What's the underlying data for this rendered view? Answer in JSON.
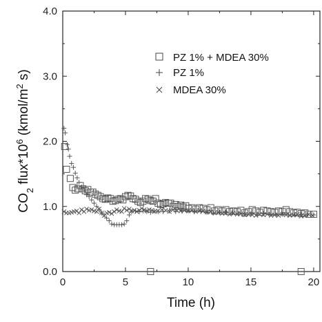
{
  "chart_data": {
    "type": "scatter",
    "xlabel": "Time (h)",
    "ylabel": {
      "prefix": "CO",
      "sub": "2",
      "mid": " flux*10",
      "sup1": "6",
      "unit_open": " (kmol/m",
      "sup2": "2",
      "unit_close": " s)"
    },
    "xlim": [
      0,
      20.5
    ],
    "ylim": [
      0,
      4.0
    ],
    "xticks": [
      0,
      5,
      10,
      15,
      20
    ],
    "xtick_labels": [
      "0",
      "5",
      "10",
      "15",
      "20"
    ],
    "yticks": [
      0,
      1,
      2,
      3,
      4
    ],
    "ytick_labels": [
      "0.0",
      "1.0",
      "2.0",
      "3.0",
      "4.0"
    ],
    "grid": false,
    "legend_position": "top-right",
    "colors": {
      "axis": "#222222",
      "marker": "#555555"
    },
    "series": [
      {
        "name": "PZ 1% + MDEA 30%",
        "marker": "square",
        "points": [
          [
            0.15,
            1.92
          ],
          [
            0.3,
            1.57
          ],
          [
            0.6,
            1.43
          ],
          [
            0.8,
            1.29
          ],
          [
            1.0,
            1.25
          ],
          [
            1.2,
            1.27
          ],
          [
            1.4,
            1.32
          ],
          [
            1.6,
            1.27
          ],
          [
            1.8,
            1.24
          ],
          [
            2.0,
            1.26
          ],
          [
            2.2,
            1.22
          ],
          [
            2.4,
            1.22
          ],
          [
            2.6,
            1.19
          ],
          [
            2.8,
            1.17
          ],
          [
            3.0,
            1.15
          ],
          [
            3.2,
            1.12
          ],
          [
            3.4,
            1.11
          ],
          [
            3.6,
            1.13
          ],
          [
            3.8,
            1.12
          ],
          [
            4.0,
            1.08
          ],
          [
            4.2,
            1.09
          ],
          [
            4.4,
            1.11
          ],
          [
            4.6,
            1.12
          ],
          [
            4.8,
            1.1
          ],
          [
            5.0,
            1.15
          ],
          [
            5.2,
            1.17
          ],
          [
            5.4,
            1.16
          ],
          [
            5.6,
            1.12
          ],
          [
            5.8,
            1.11
          ],
          [
            6.0,
            1.08
          ],
          [
            6.2,
            1.06
          ],
          [
            6.4,
            1.08
          ],
          [
            6.6,
            1.12
          ],
          [
            6.8,
            1.11
          ],
          [
            7.0,
            1.09
          ],
          [
            7.2,
            1.08
          ],
          [
            7.4,
            1.12
          ],
          [
            7.6,
            1.05
          ],
          [
            7.8,
            1.03
          ],
          [
            8.0,
            1.04
          ],
          [
            8.2,
            1.06
          ],
          [
            8.4,
            1.05
          ],
          [
            8.6,
            1.05
          ],
          [
            8.8,
            1.0
          ],
          [
            9.0,
            1.03
          ],
          [
            9.2,
            1.0
          ],
          [
            9.4,
            1.02
          ],
          [
            9.6,
            0.99
          ],
          [
            9.8,
            1.01
          ],
          [
            10.0,
            0.97
          ],
          [
            10.3,
            0.98
          ],
          [
            10.6,
            0.96
          ],
          [
            10.9,
            0.98
          ],
          [
            11.2,
            0.97
          ],
          [
            11.5,
            0.95
          ],
          [
            11.8,
            0.98
          ],
          [
            12.1,
            0.93
          ],
          [
            12.4,
            0.95
          ],
          [
            12.7,
            0.93
          ],
          [
            13.0,
            0.95
          ],
          [
            13.3,
            0.92
          ],
          [
            13.6,
            0.93
          ],
          [
            13.9,
            0.92
          ],
          [
            14.2,
            0.94
          ],
          [
            14.5,
            0.9
          ],
          [
            14.8,
            0.92
          ],
          [
            15.1,
            0.95
          ],
          [
            15.4,
            0.93
          ],
          [
            15.7,
            0.91
          ],
          [
            16.0,
            0.94
          ],
          [
            16.3,
            0.93
          ],
          [
            16.6,
            0.92
          ],
          [
            16.9,
            0.91
          ],
          [
            17.2,
            0.93
          ],
          [
            17.5,
            0.92
          ],
          [
            17.8,
            0.95
          ],
          [
            18.1,
            0.92
          ],
          [
            18.4,
            0.9
          ],
          [
            18.7,
            0.91
          ],
          [
            19.0,
            0.89
          ],
          [
            19.3,
            0.9
          ],
          [
            19.6,
            0.88
          ],
          [
            20.0,
            0.88
          ],
          [
            7.0,
            0.0
          ],
          [
            19.0,
            0.0
          ]
        ]
      },
      {
        "name": "PZ 1%",
        "marker": "plus",
        "points": [
          [
            0.1,
            2.2
          ],
          [
            0.2,
            2.13
          ],
          [
            0.35,
            1.95
          ],
          [
            0.45,
            1.88
          ],
          [
            0.55,
            1.77
          ],
          [
            0.7,
            1.66
          ],
          [
            0.85,
            1.6
          ],
          [
            1.0,
            1.51
          ],
          [
            1.15,
            1.44
          ],
          [
            1.3,
            1.37
          ],
          [
            1.5,
            1.3
          ],
          [
            1.7,
            1.25
          ],
          [
            1.9,
            1.18
          ],
          [
            2.1,
            1.15
          ],
          [
            2.3,
            1.1
          ],
          [
            2.5,
            1.05
          ],
          [
            2.7,
            1.0
          ],
          [
            2.9,
            0.95
          ],
          [
            3.1,
            0.9
          ],
          [
            3.3,
            0.87
          ],
          [
            3.5,
            0.82
          ],
          [
            3.7,
            0.78
          ],
          [
            3.9,
            0.73
          ],
          [
            4.1,
            0.72
          ],
          [
            4.3,
            0.72
          ],
          [
            4.5,
            0.72
          ],
          [
            4.7,
            0.72
          ],
          [
            4.9,
            0.73
          ],
          [
            5.1,
            0.78
          ],
          [
            5.3,
            0.87
          ],
          [
            5.5,
            0.92
          ],
          [
            5.8,
            0.93
          ],
          [
            6.1,
            0.92
          ],
          [
            6.4,
            0.93
          ],
          [
            6.7,
            0.92
          ],
          [
            7.0,
            0.91
          ],
          [
            7.3,
            0.93
          ],
          [
            7.6,
            0.92
          ],
          [
            8.0,
            0.92
          ],
          [
            8.5,
            0.93
          ],
          [
            9.0,
            0.92
          ],
          [
            9.5,
            0.93
          ],
          [
            10.0,
            0.93
          ],
          [
            10.5,
            0.92
          ],
          [
            11.0,
            0.92
          ],
          [
            11.5,
            0.91
          ],
          [
            12.0,
            0.9
          ],
          [
            12.5,
            0.91
          ],
          [
            13.0,
            0.91
          ],
          [
            13.5,
            0.9
          ],
          [
            14.0,
            0.89
          ],
          [
            14.5,
            0.88
          ],
          [
            15.0,
            0.89
          ],
          [
            15.5,
            0.88
          ],
          [
            16.0,
            0.89
          ],
          [
            16.5,
            0.88
          ],
          [
            17.0,
            0.87
          ],
          [
            17.5,
            0.88
          ],
          [
            18.0,
            0.87
          ],
          [
            18.5,
            0.87
          ],
          [
            19.0,
            0.88
          ],
          [
            19.5,
            0.87
          ],
          [
            20.0,
            0.87
          ]
        ]
      },
      {
        "name": "MDEA 30%",
        "marker": "cross",
        "points": [
          [
            0.1,
            0.92
          ],
          [
            0.3,
            0.9
          ],
          [
            0.5,
            0.9
          ],
          [
            0.7,
            0.91
          ],
          [
            0.9,
            0.92
          ],
          [
            1.1,
            0.93
          ],
          [
            1.3,
            0.9
          ],
          [
            1.5,
            0.95
          ],
          [
            1.7,
            0.92
          ],
          [
            1.9,
            0.96
          ],
          [
            2.1,
            0.94
          ],
          [
            2.3,
            0.95
          ],
          [
            2.5,
            0.93
          ],
          [
            2.7,
            0.92
          ],
          [
            2.9,
            0.96
          ],
          [
            3.1,
            0.9
          ],
          [
            3.3,
            0.86
          ],
          [
            3.5,
            0.9
          ],
          [
            3.7,
            0.91
          ],
          [
            3.9,
            0.89
          ],
          [
            4.1,
            0.92
          ],
          [
            4.3,
            0.95
          ],
          [
            4.5,
            0.93
          ],
          [
            4.7,
            0.92
          ],
          [
            4.9,
            0.97
          ],
          [
            5.1,
            0.94
          ],
          [
            5.3,
            0.96
          ],
          [
            5.5,
            0.93
          ],
          [
            5.7,
            0.94
          ],
          [
            5.9,
            0.92
          ],
          [
            6.1,
            0.94
          ],
          [
            6.3,
            0.97
          ],
          [
            6.5,
            0.95
          ],
          [
            6.7,
            0.93
          ],
          [
            6.9,
            0.95
          ],
          [
            7.1,
            0.94
          ],
          [
            7.3,
            0.92
          ],
          [
            7.6,
            0.93
          ],
          [
            7.9,
            0.95
          ],
          [
            8.2,
            0.94
          ],
          [
            8.5,
            0.92
          ],
          [
            8.8,
            0.95
          ],
          [
            9.1,
            0.94
          ],
          [
            9.4,
            0.93
          ],
          [
            9.7,
            0.94
          ],
          [
            10.0,
            0.93
          ],
          [
            10.3,
            0.94
          ],
          [
            10.6,
            0.92
          ],
          [
            10.9,
            0.94
          ],
          [
            11.2,
            0.93
          ],
          [
            11.5,
            0.91
          ],
          [
            11.8,
            0.92
          ],
          [
            12.1,
            0.9
          ],
          [
            12.4,
            0.91
          ],
          [
            12.7,
            0.89
          ],
          [
            13.0,
            0.9
          ],
          [
            13.3,
            0.88
          ],
          [
            13.6,
            0.9
          ],
          [
            13.9,
            0.88
          ],
          [
            14.2,
            0.89
          ],
          [
            14.5,
            0.87
          ],
          [
            14.8,
            0.88
          ],
          [
            15.1,
            0.87
          ],
          [
            15.4,
            0.86
          ],
          [
            15.7,
            0.88
          ],
          [
            16.0,
            0.87
          ],
          [
            16.3,
            0.88
          ],
          [
            16.6,
            0.86
          ],
          [
            16.9,
            0.87
          ],
          [
            17.2,
            0.86
          ],
          [
            17.5,
            0.88
          ],
          [
            17.8,
            0.87
          ],
          [
            18.1,
            0.86
          ],
          [
            18.4,
            0.87
          ],
          [
            18.7,
            0.88
          ],
          [
            19.0,
            0.85
          ],
          [
            19.3,
            0.86
          ],
          [
            19.6,
            0.88
          ],
          [
            19.9,
            0.86
          ]
        ]
      }
    ]
  }
}
